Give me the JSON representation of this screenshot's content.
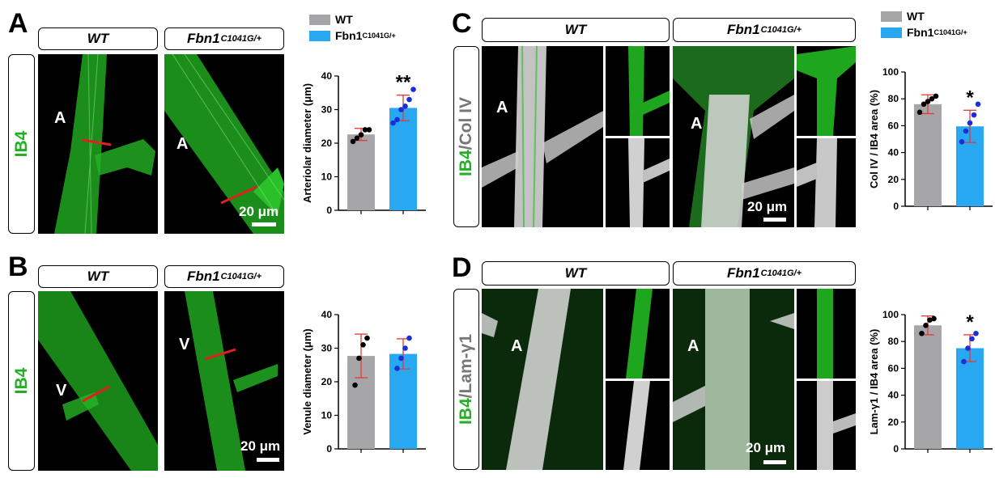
{
  "panels": {
    "A": {
      "letter": "A",
      "stain_green": "IB4",
      "stain_other": "",
      "wt": "WT",
      "mut": "Fbn1",
      "mut_sup": "C1041G/+",
      "vessel_wt": "A",
      "vessel_mut": "A",
      "scale": "20 μm"
    },
    "B": {
      "letter": "B",
      "stain_green": "IB4",
      "stain_other": "",
      "wt": "WT",
      "mut": "Fbn1",
      "mut_sup": "C1041G/+",
      "vessel_wt": "V",
      "vessel_mut": "V",
      "scale": "20 μm"
    },
    "C": {
      "letter": "C",
      "stain_green": "IB4",
      "stain_sep": "/",
      "stain_other": "Col IV",
      "wt": "WT",
      "mut": "Fbn1",
      "mut_sup": "C1041G/+",
      "vessel_wt": "A",
      "vessel_mut": "A",
      "scale": "20 μm"
    },
    "D": {
      "letter": "D",
      "stain_green": "IB4",
      "stain_sep": "/",
      "stain_other": "Lam-γ1",
      "wt": "WT",
      "mut": "Fbn1",
      "mut_sup": "C1041G/+",
      "vessel_wt": "A",
      "vessel_mut": "A",
      "scale": "20 μm"
    }
  },
  "legend": {
    "wt": "WT",
    "mut": "Fbn1",
    "mut_sup": "C1041G/+"
  },
  "colors": {
    "wt": "#a6a6a8",
    "mut": "#29a8f2",
    "wt_dots": "#000000",
    "mut_dots": "#1a2fd6",
    "error": "#e23a3a",
    "green": "#22b022"
  },
  "chart_data": [
    {
      "id": "A",
      "type": "bar",
      "categories": [
        "WT",
        "Fbn1C1041G/+"
      ],
      "values": [
        22.6,
        30.5
      ],
      "errors": [
        1.8,
        3.8
      ],
      "points": [
        [
          20.5,
          21.5,
          22.5,
          24,
          24
        ],
        [
          26,
          27,
          30,
          31,
          33,
          36
        ]
      ],
      "ylabel": "Arteriolar diameter (μm)",
      "ylim": [
        0,
        40
      ],
      "yticks": [
        0,
        10,
        20,
        30,
        40
      ],
      "significance": "**"
    },
    {
      "id": "B",
      "type": "bar",
      "categories": [
        "WT",
        "Fbn1C1041G/+"
      ],
      "values": [
        27.7,
        28.3
      ],
      "errors": [
        6.5,
        4.5
      ],
      "points": [
        [
          19,
          27,
          31,
          33
        ],
        [
          24,
          27,
          30,
          33
        ]
      ],
      "ylabel": "Venule diameter (μm)",
      "ylim": [
        0,
        40
      ],
      "yticks": [
        0,
        10,
        20,
        30,
        40
      ],
      "significance": ""
    },
    {
      "id": "C",
      "type": "bar",
      "categories": [
        "WT",
        "Fbn1C1041G/+"
      ],
      "values": [
        76,
        59.5
      ],
      "errors": [
        7,
        12
      ],
      "points": [
        [
          70,
          76,
          78,
          80,
          82
        ],
        [
          48,
          56,
          62,
          68,
          76
        ]
      ],
      "ylabel": "Col IV / IB4 area (%)",
      "ylim": [
        0,
        100
      ],
      "yticks": [
        0,
        20,
        40,
        60,
        80,
        100
      ],
      "significance": "*"
    },
    {
      "id": "D",
      "type": "bar",
      "categories": [
        "WT",
        "Fbn1C1041G/+"
      ],
      "values": [
        92,
        75
      ],
      "errors": [
        7,
        10
      ],
      "points": [
        [
          86,
          92,
          96,
          97
        ],
        [
          65,
          75,
          82,
          86
        ]
      ],
      "ylabel": "Lam-γ1 / IB4 area (%)",
      "ylim": [
        0,
        100
      ],
      "yticks": [
        0,
        20,
        40,
        60,
        80,
        100
      ],
      "significance": "*"
    }
  ]
}
